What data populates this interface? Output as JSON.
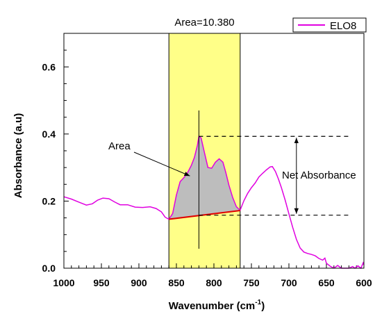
{
  "chart_data": {
    "type": "line",
    "xlabel": "Wavenumber (cm",
    "xlabel_sup": "-1",
    "xlabel_close": ")",
    "ylabel": "Absorbance (a.u)",
    "xlim": [
      1000,
      600
    ],
    "ylim": [
      0.0,
      0.7
    ],
    "x_reversed": true,
    "x_ticks": [
      "1000",
      "950",
      "900",
      "850",
      "800",
      "750",
      "700",
      "650",
      "600"
    ],
    "y_ticks": [
      "0.0",
      "0.2",
      "0.4",
      "0.6"
    ],
    "legend_position": "top-right",
    "series": [
      {
        "name": "ELO8",
        "color": "#e000e0",
        "points": [
          [
            1000,
            0.213
          ],
          [
            990,
            0.206
          ],
          [
            980,
            0.197
          ],
          [
            970,
            0.188
          ],
          [
            962,
            0.192
          ],
          [
            955,
            0.203
          ],
          [
            948,
            0.209
          ],
          [
            940,
            0.207
          ],
          [
            932,
            0.197
          ],
          [
            925,
            0.189
          ],
          [
            915,
            0.189
          ],
          [
            905,
            0.182
          ],
          [
            895,
            0.181
          ],
          [
            885,
            0.183
          ],
          [
            877,
            0.178
          ],
          [
            870,
            0.168
          ],
          [
            865,
            0.152
          ],
          [
            860,
            0.146
          ],
          [
            855,
            0.163
          ],
          [
            850,
            0.218
          ],
          [
            845,
            0.258
          ],
          [
            840,
            0.27
          ],
          [
            835,
            0.285
          ],
          [
            830,
            0.307
          ],
          [
            826,
            0.33
          ],
          [
            822,
            0.366
          ],
          [
            820,
            0.393
          ],
          [
            817,
            0.388
          ],
          [
            813,
            0.348
          ],
          [
            808,
            0.3
          ],
          [
            803,
            0.298
          ],
          [
            798,
            0.316
          ],
          [
            793,
            0.326
          ],
          [
            788,
            0.316
          ],
          [
            784,
            0.284
          ],
          [
            780,
            0.248
          ],
          [
            775,
            0.211
          ],
          [
            770,
            0.183
          ],
          [
            765,
            0.173
          ],
          [
            760,
            0.201
          ],
          [
            755,
            0.223
          ],
          [
            750,
            0.24
          ],
          [
            745,
            0.254
          ],
          [
            740,
            0.272
          ],
          [
            735,
            0.283
          ],
          [
            730,
            0.293
          ],
          [
            725,
            0.302
          ],
          [
            722,
            0.303
          ],
          [
            718,
            0.288
          ],
          [
            714,
            0.266
          ],
          [
            710,
            0.24
          ],
          [
            705,
            0.203
          ],
          [
            700,
            0.162
          ],
          [
            695,
            0.122
          ],
          [
            690,
            0.086
          ],
          [
            685,
            0.06
          ],
          [
            680,
            0.048
          ],
          [
            675,
            0.044
          ],
          [
            670,
            0.041
          ],
          [
            665,
            0.037
          ],
          [
            660,
            0.029
          ],
          [
            655,
            0.024
          ],
          [
            652,
            0.03
          ],
          [
            650,
            0.015
          ],
          [
            645,
            0.006
          ],
          [
            640,
            0.0
          ],
          [
            635,
            0.008
          ],
          [
            630,
            0.0
          ],
          [
            620,
            0.0
          ],
          [
            615,
            0.005
          ],
          [
            612,
            0.0
          ],
          [
            608,
            0.007
          ],
          [
            604,
            0.0
          ],
          [
            601,
            0.016
          ],
          [
            600,
            0.01
          ]
        ]
      }
    ],
    "highlight": {
      "x_range": [
        860,
        765
      ],
      "label": "Area=10.380",
      "color": "#ffff88"
    },
    "baseline": {
      "from": [
        860,
        0.146
      ],
      "to": [
        765,
        0.172
      ],
      "color": "#e00000"
    },
    "peak": {
      "x": 820,
      "y": 0.393,
      "baseline_y": 0.158,
      "line_ymax": 0.47,
      "line_ymin": 0.058
    },
    "net_absorbance": {
      "top_y": 0.393,
      "bottom_y": 0.158,
      "arrow_x": 690,
      "line_end_x": 620,
      "label": "Net Absorbance"
    },
    "area_annotation": {
      "label": "Area",
      "label_at": [
        945,
        0.366
      ],
      "arrow_to": [
        832,
        0.275
      ]
    }
  }
}
